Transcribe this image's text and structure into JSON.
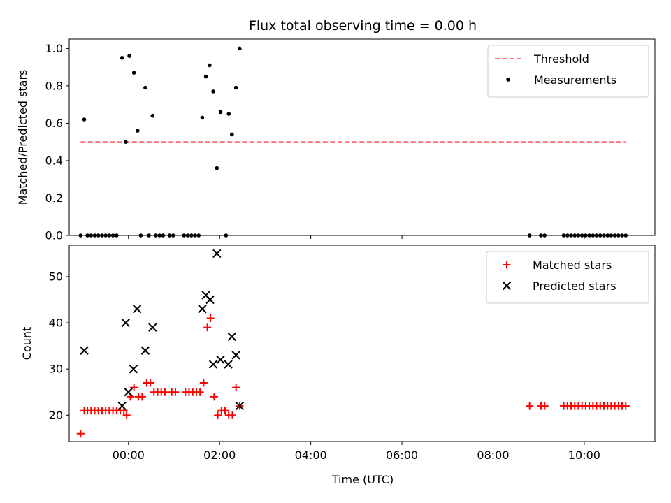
{
  "chart_data": {
    "type": "scatter",
    "title": "Flux total observing time = 0.00 h",
    "xlabel": "Time (UTC)",
    "x_unit": "hours",
    "xlim": [
      -1.3,
      11.55
    ],
    "x_ticks": [
      0,
      2,
      4,
      6,
      8,
      10
    ],
    "x_tick_labels": [
      "00:00",
      "02:00",
      "04:00",
      "06:00",
      "08:00",
      "10:00"
    ],
    "panels": [
      {
        "ylabel": "Matched/Predicted stars",
        "ylim": [
          0,
          1.05
        ],
        "y_ticks": [
          0,
          0.2,
          0.4,
          0.6,
          0.8,
          1.0
        ],
        "y_tick_labels": [
          "0.0",
          "0.2",
          "0.4",
          "0.6",
          "0.8",
          "1.0"
        ],
        "legend_position": "top-right",
        "threshold": {
          "name": "Threshold",
          "value": 0.5,
          "x_range": [
            -1.05,
            10.9
          ],
          "color": "#ff7070"
        },
        "series": [
          {
            "name": "Measurements",
            "marker": "dot",
            "color": "#000000",
            "points": [
              [
                -1.05,
                0
              ],
              [
                -0.97,
                0.62
              ],
              [
                -0.9,
                0
              ],
              [
                -0.82,
                0
              ],
              [
                -0.74,
                0
              ],
              [
                -0.66,
                0
              ],
              [
                -0.58,
                0
              ],
              [
                -0.5,
                0
              ],
              [
                -0.42,
                0
              ],
              [
                -0.34,
                0
              ],
              [
                -0.26,
                0
              ],
              [
                -0.14,
                0.95
              ],
              [
                -0.06,
                0.5
              ],
              [
                0.02,
                0.96
              ],
              [
                0.12,
                0.87
              ],
              [
                0.2,
                0.56
              ],
              [
                0.27,
                0
              ],
              [
                0.37,
                0.79
              ],
              [
                0.45,
                0
              ],
              [
                0.53,
                0.64
              ],
              [
                0.6,
                0
              ],
              [
                0.68,
                0
              ],
              [
                0.76,
                0
              ],
              [
                0.9,
                0
              ],
              [
                0.98,
                0
              ],
              [
                1.22,
                0
              ],
              [
                1.3,
                0
              ],
              [
                1.38,
                0
              ],
              [
                1.46,
                0
              ],
              [
                1.54,
                0
              ],
              [
                1.62,
                0.63
              ],
              [
                1.7,
                0.85
              ],
              [
                1.78,
                0.91
              ],
              [
                1.86,
                0.77
              ],
              [
                1.94,
                0.36
              ],
              [
                2.02,
                0.66
              ],
              [
                2.14,
                0
              ],
              [
                2.2,
                0.65
              ],
              [
                2.27,
                0.54
              ],
              [
                2.36,
                0.79
              ],
              [
                2.44,
                1.0
              ],
              [
                8.8,
                0
              ],
              [
                9.05,
                0
              ],
              [
                9.13,
                0
              ],
              [
                9.55,
                0
              ],
              [
                9.63,
                0
              ],
              [
                9.71,
                0
              ],
              [
                9.79,
                0
              ],
              [
                9.87,
                0
              ],
              [
                9.95,
                0
              ],
              [
                10.03,
                0
              ],
              [
                10.11,
                0
              ],
              [
                10.19,
                0
              ],
              [
                10.27,
                0
              ],
              [
                10.35,
                0
              ],
              [
                10.43,
                0
              ],
              [
                10.51,
                0
              ],
              [
                10.59,
                0
              ],
              [
                10.67,
                0
              ],
              [
                10.75,
                0
              ],
              [
                10.83,
                0
              ],
              [
                10.91,
                0
              ]
            ]
          }
        ]
      },
      {
        "ylabel": "Count",
        "ylim": [
          14.3,
          56.8
        ],
        "y_ticks": [
          20,
          30,
          40,
          50
        ],
        "y_tick_labels": [
          "20",
          "30",
          "40",
          "50"
        ],
        "legend_position": "top-right",
        "series": [
          {
            "name": "Matched stars",
            "marker": "plus",
            "color": "#ff0000",
            "points": [
              [
                -1.05,
                16
              ],
              [
                -0.97,
                21
              ],
              [
                -0.9,
                21
              ],
              [
                -0.82,
                21
              ],
              [
                -0.74,
                21
              ],
              [
                -0.66,
                21
              ],
              [
                -0.58,
                21
              ],
              [
                -0.5,
                21
              ],
              [
                -0.42,
                21
              ],
              [
                -0.34,
                21
              ],
              [
                -0.26,
                21
              ],
              [
                -0.18,
                21
              ],
              [
                -0.1,
                21
              ],
              [
                -0.04,
                20
              ],
              [
                0.04,
                24
              ],
              [
                0.12,
                26
              ],
              [
                0.22,
                24
              ],
              [
                0.3,
                24
              ],
              [
                0.4,
                27
              ],
              [
                0.48,
                27
              ],
              [
                0.56,
                25
              ],
              [
                0.64,
                25
              ],
              [
                0.72,
                25
              ],
              [
                0.8,
                25
              ],
              [
                0.95,
                25
              ],
              [
                1.03,
                25
              ],
              [
                1.25,
                25
              ],
              [
                1.33,
                25
              ],
              [
                1.41,
                25
              ],
              [
                1.49,
                25
              ],
              [
                1.57,
                25
              ],
              [
                1.65,
                27
              ],
              [
                1.73,
                39
              ],
              [
                1.8,
                41
              ],
              [
                1.88,
                24
              ],
              [
                1.96,
                20
              ],
              [
                2.04,
                21
              ],
              [
                2.12,
                21
              ],
              [
                2.2,
                20
              ],
              [
                2.28,
                20
              ],
              [
                2.36,
                26
              ],
              [
                2.44,
                22
              ],
              [
                8.8,
                22
              ],
              [
                9.05,
                22
              ],
              [
                9.13,
                22
              ],
              [
                9.55,
                22
              ],
              [
                9.63,
                22
              ],
              [
                9.71,
                22
              ],
              [
                9.79,
                22
              ],
              [
                9.87,
                22
              ],
              [
                9.95,
                22
              ],
              [
                10.03,
                22
              ],
              [
                10.11,
                22
              ],
              [
                10.19,
                22
              ],
              [
                10.27,
                22
              ],
              [
                10.35,
                22
              ],
              [
                10.43,
                22
              ],
              [
                10.51,
                22
              ],
              [
                10.59,
                22
              ],
              [
                10.67,
                22
              ],
              [
                10.75,
                22
              ],
              [
                10.83,
                22
              ],
              [
                10.91,
                22
              ]
            ]
          },
          {
            "name": "Predicted stars",
            "marker": "x",
            "color": "#000000",
            "points": [
              [
                -0.97,
                34
              ],
              [
                -0.14,
                22
              ],
              [
                -0.06,
                40
              ],
              [
                0.0,
                25
              ],
              [
                0.11,
                30
              ],
              [
                0.19,
                43
              ],
              [
                0.37,
                34
              ],
              [
                0.53,
                39
              ],
              [
                1.62,
                43
              ],
              [
                1.7,
                46
              ],
              [
                1.79,
                45
              ],
              [
                1.86,
                31
              ],
              [
                1.94,
                55
              ],
              [
                2.02,
                32
              ],
              [
                2.19,
                31
              ],
              [
                2.27,
                37
              ],
              [
                2.36,
                33
              ],
              [
                2.44,
                22
              ]
            ]
          }
        ]
      }
    ]
  }
}
